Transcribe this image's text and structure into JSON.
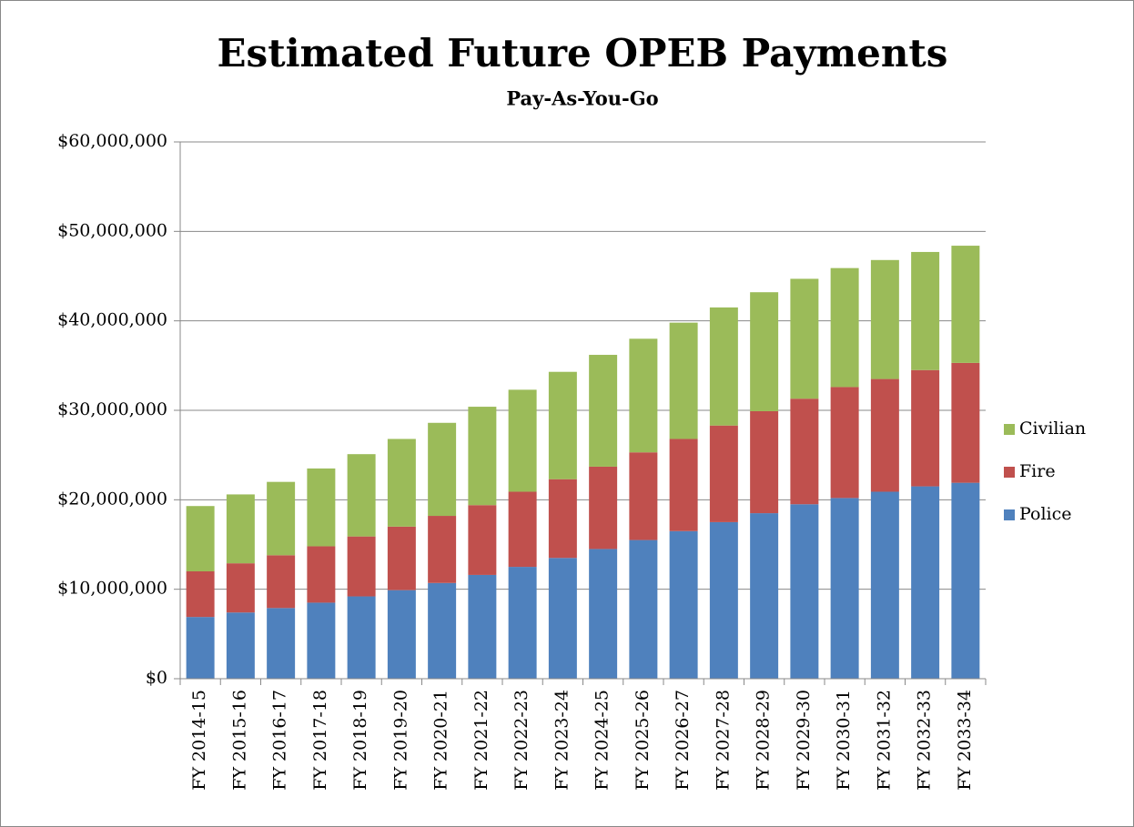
{
  "chart_data": {
    "type": "stacked_bar",
    "title": "Estimated Future OPEB Payments",
    "subtitle": "Pay-As-You-Go",
    "categories": [
      "FY 2014-15",
      "FY 2015-16",
      "FY 2016-17",
      "FY 2017-18",
      "FY 2018-19",
      "FY 2019-20",
      "FY 2020-21",
      "FY 2021-22",
      "FY 2022-23",
      "FY 2023-24",
      "FY 2024-25",
      "FY 2025-26",
      "FY 2026-27",
      "FY 2027-28",
      "FY 2028-29",
      "FY 2029-30",
      "FY 2030-31",
      "FY 2031-32",
      "FY 2032-33",
      "FY 2033-34"
    ],
    "series": [
      {
        "name": "Police",
        "color": "#4f81bd",
        "values": [
          6900000,
          7400000,
          7900000,
          8500000,
          9200000,
          9900000,
          10700000,
          11600000,
          12500000,
          13500000,
          14500000,
          15500000,
          16500000,
          17500000,
          18500000,
          19500000,
          20200000,
          20900000,
          21500000,
          21900000
        ]
      },
      {
        "name": "Fire",
        "color": "#c0504d",
        "values": [
          5100000,
          5500000,
          5900000,
          6300000,
          6700000,
          7100000,
          7500000,
          7800000,
          8400000,
          8800000,
          9200000,
          9800000,
          10300000,
          10800000,
          11400000,
          11800000,
          12400000,
          12600000,
          13000000,
          13400000
        ]
      },
      {
        "name": "Civilian",
        "color": "#9bbb59",
        "values": [
          7300000,
          7700000,
          8200000,
          8700000,
          9200000,
          9800000,
          10400000,
          11000000,
          11400000,
          12000000,
          12500000,
          12700000,
          13000000,
          13200000,
          13300000,
          13400000,
          13300000,
          13300000,
          13200000,
          13100000
        ]
      }
    ],
    "ylim": [
      0,
      60000000
    ],
    "yticks": [
      {
        "value": 0,
        "label": "$0"
      },
      {
        "value": 10000000,
        "label": "$10,000,000"
      },
      {
        "value": 20000000,
        "label": "$20,000,000"
      },
      {
        "value": 30000000,
        "label": "$30,000,000"
      },
      {
        "value": 40000000,
        "label": "$40,000,000"
      },
      {
        "value": 50000000,
        "label": "$50,000,000"
      },
      {
        "value": 60000000,
        "label": "$60,000,000"
      }
    ],
    "grid": true,
    "legend": "right"
  }
}
